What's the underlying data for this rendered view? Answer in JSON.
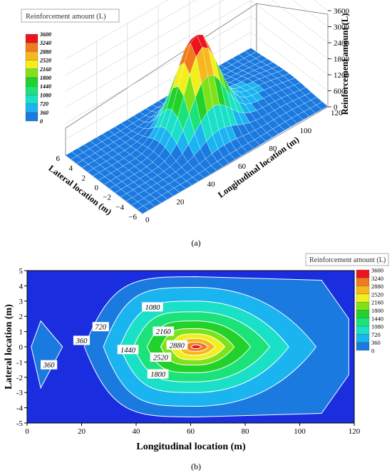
{
  "chart_data": [
    {
      "panel_label": "(a)",
      "type": "surface3d",
      "legend_title": "Reinforcement amount (L)",
      "legend_levels": [
        "3600",
        "3240",
        "2880",
        "2520",
        "2160",
        "1800",
        "1440",
        "1080",
        "720",
        "360",
        "0"
      ],
      "colors": [
        "#e8141e",
        "#f07a1c",
        "#f6b81d",
        "#f2f01c",
        "#7ee21a",
        "#22d22a",
        "#1ce27a",
        "#1ae0c8",
        "#1ab4f0",
        "#1a7ae0",
        "#1a2ee0"
      ],
      "x_axis": {
        "label": "Longitudinal location (m)",
        "ticks": [
          "0",
          "20",
          "40",
          "60",
          "80",
          "100",
          "120"
        ],
        "range": [
          0,
          120
        ]
      },
      "y_axis": {
        "label": "Lateral location (m)",
        "ticks": [
          "6",
          "4",
          "2",
          "0",
          "−2",
          "−4",
          "−6"
        ],
        "range": [
          -6,
          6
        ]
      },
      "z_axis": {
        "label": "Reinforcement amount (L)",
        "ticks": [
          "0",
          "600",
          "1200",
          "1800",
          "2400",
          "3000",
          "3600"
        ],
        "range": [
          0,
          3600
        ]
      },
      "peak": {
        "x": 60,
        "y": 0,
        "z": 3600
      }
    },
    {
      "panel_label": "(b)",
      "type": "contour",
      "legend_title": "Reinforcement amount (L)",
      "legend_levels": [
        "3600",
        "3240",
        "2880",
        "2520",
        "2160",
        "1800",
        "1440",
        "1080",
        "720",
        "360",
        "0"
      ],
      "colors": [
        "#e8141e",
        "#f07a1c",
        "#f6b81d",
        "#f2f01c",
        "#7ee21a",
        "#22d22a",
        "#1ce27a",
        "#1ae0c8",
        "#1ab4f0",
        "#1a7ae0",
        "#1a2ee0"
      ],
      "x_axis": {
        "label": "Longitudinal location (m)",
        "ticks": [
          "0",
          "20",
          "40",
          "60",
          "80",
          "100",
          "120"
        ],
        "range": [
          0,
          120
        ]
      },
      "y_axis": {
        "label": "Lateral location (m)",
        "ticks": [
          "5",
          "4",
          "3",
          "2",
          "1",
          "0",
          "-1",
          "-2",
          "-3",
          "-4",
          "-5"
        ],
        "range": [
          -5,
          5
        ]
      },
      "contour_labels": [
        {
          "text": "360",
          "x": 8,
          "y": -1.2
        },
        {
          "text": "360",
          "x": 20,
          "y": 0.4
        },
        {
          "text": "720",
          "x": 27,
          "y": 1.3
        },
        {
          "text": "1080",
          "x": 46,
          "y": 2.6
        },
        {
          "text": "2160",
          "x": 50,
          "y": 1.0
        },
        {
          "text": "2880",
          "x": 55,
          "y": 0.1
        },
        {
          "text": "1440",
          "x": 37,
          "y": -0.2
        },
        {
          "text": "2520",
          "x": 49,
          "y": -0.7
        },
        {
          "text": "1800",
          "x": 48,
          "y": -1.8
        }
      ],
      "regions": [
        {
          "level": 360,
          "x": [
            0,
            106,
            117,
            117,
            106,
            0
          ],
          "y": [
            0,
            4.6,
            4.6,
            0,
            -4.6,
            0
          ],
          "kind": "main"
        }
      ]
    }
  ]
}
